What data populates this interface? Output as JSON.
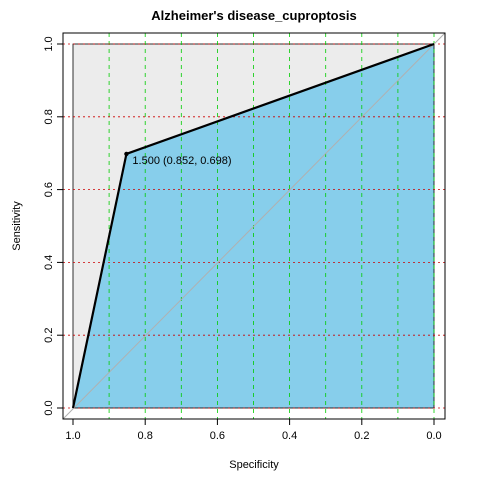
{
  "chart_data": {
    "type": "line",
    "title": "Alzheimer's disease_cuproptosis",
    "xlabel": "Specificity",
    "ylabel": "Sensitivity",
    "x_reversed": true,
    "xlim": [
      1.0,
      0.0
    ],
    "ylim": [
      0.0,
      1.0
    ],
    "x_ticks": [
      "1.0",
      "0.8",
      "0.6",
      "0.4",
      "0.2",
      "0.0"
    ],
    "y_ticks": [
      "0.0",
      "0.2",
      "0.4",
      "0.6",
      "0.8",
      "1.0"
    ],
    "series": [
      {
        "specificity": [
          1.0,
          0.852,
          0.0
        ],
        "sensitivity": [
          0.0,
          0.698,
          1.0
        ]
      }
    ],
    "threshold_point": {
      "specificity": 0.852,
      "sensitivity": 0.698,
      "label": "1.500 (0.852, 0.698)"
    },
    "diagonal": true,
    "grid": true,
    "colors": {
      "auc_fill": "#87ceeb",
      "background_fill": "#ececec",
      "curve": "#000000",
      "diagonal": "#b0b0b0",
      "grid_x": "#00cc00",
      "grid_y": "#cc0000"
    }
  }
}
